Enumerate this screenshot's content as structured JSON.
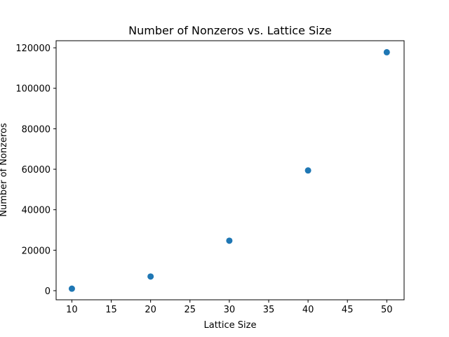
{
  "chart_data": {
    "type": "scatter",
    "title": "Number of Nonzeros vs. Lattice Size",
    "xlabel": "Lattice Size",
    "ylabel": "Number of Nonzeros",
    "x": [
      10,
      20,
      30,
      40,
      50
    ],
    "y": [
      1000,
      7000,
      24700,
      59400,
      117800
    ],
    "xlim": [
      8,
      52.2
    ],
    "ylim": [
      -4500,
      123500
    ],
    "xticks": [
      10,
      15,
      20,
      25,
      30,
      35,
      40,
      45,
      50
    ],
    "yticks": [
      0,
      20000,
      40000,
      60000,
      80000,
      100000,
      120000
    ],
    "grid": false,
    "legend": "none",
    "marker_color": "#1f77b4"
  }
}
